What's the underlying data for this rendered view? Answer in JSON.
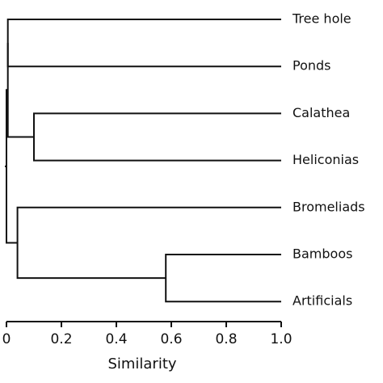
{
  "chart_data": {
    "type": "dendrogram",
    "leaves": [
      "Tree hole",
      "Ponds",
      "Calathea",
      "Heliconias",
      "Bromeliads",
      "Bamboos",
      "Artificials"
    ],
    "merges": [
      {
        "left": 5,
        "right": 6,
        "height": 0.58
      },
      {
        "left": 4,
        "right": 7,
        "height": 0.04
      },
      {
        "left": 2,
        "right": 3,
        "height": 0.1
      },
      {
        "left": 0,
        "right": 1,
        "height": 0.005
      },
      {
        "left": 10,
        "right": 9,
        "height": 0.005
      },
      {
        "left": 11,
        "right": 8,
        "height": 0
      }
    ],
    "xlabel": "Similarity",
    "xlim": [
      0,
      1
    ],
    "xticks": [
      0,
      0.2,
      0.4,
      0.6,
      0.8,
      {
        "value": 1,
        "label": "1.0"
      }
    ],
    "color": "#111111"
  }
}
